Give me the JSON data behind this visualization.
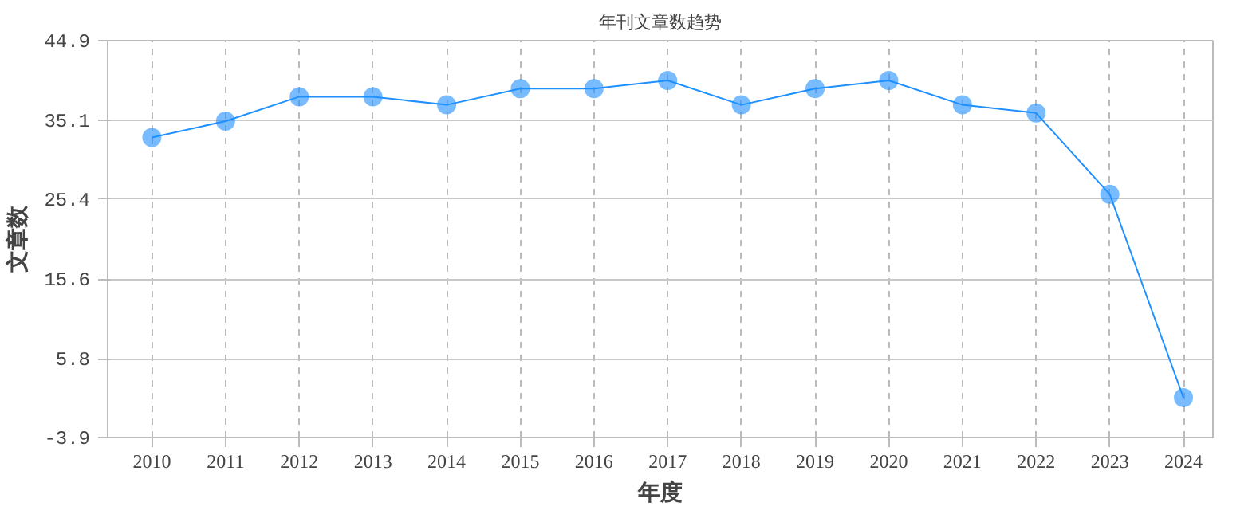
{
  "chart_data": {
    "type": "line",
    "title": "年刊文章数趋势",
    "xlabel": "年度",
    "ylabel": "文章数",
    "categories": [
      "2010",
      "2011",
      "2012",
      "2013",
      "2014",
      "2015",
      "2016",
      "2017",
      "2018",
      "2019",
      "2020",
      "2021",
      "2022",
      "2023",
      "2024"
    ],
    "series": [
      {
        "color": "#1e90ff",
        "values": [
          33,
          35,
          38,
          38,
          37,
          39,
          39,
          40,
          37,
          39,
          40,
          37,
          36,
          26,
          1
        ]
      }
    ],
    "ylim": [
      -3.9,
      44.9
    ],
    "yticks": [
      -3.9,
      5.8,
      15.6,
      25.4,
      35.1,
      44.9
    ],
    "grid": true,
    "marker": "circle",
    "line_style": "solid"
  }
}
